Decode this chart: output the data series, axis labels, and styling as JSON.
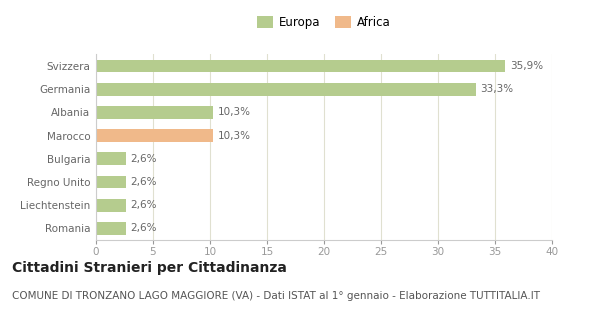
{
  "categories": [
    "Svizzera",
    "Germania",
    "Albania",
    "Marocco",
    "Bulgaria",
    "Regno Unito",
    "Liechtenstein",
    "Romania"
  ],
  "values": [
    35.9,
    33.3,
    10.3,
    10.3,
    2.6,
    2.6,
    2.6,
    2.6
  ],
  "labels": [
    "35,9%",
    "33,3%",
    "10,3%",
    "10,3%",
    "2,6%",
    "2,6%",
    "2,6%",
    "2,6%"
  ],
  "colors": [
    "#b5cc8e",
    "#b5cc8e",
    "#b5cc8e",
    "#f0b98a",
    "#b5cc8e",
    "#b5cc8e",
    "#b5cc8e",
    "#b5cc8e"
  ],
  "legend_items": [
    {
      "label": "Europa",
      "color": "#b5cc8e"
    },
    {
      "label": "Africa",
      "color": "#f0b98a"
    }
  ],
  "xlim": [
    0,
    40
  ],
  "xticks": [
    0,
    5,
    10,
    15,
    20,
    25,
    30,
    35,
    40
  ],
  "title": "Cittadini Stranieri per Cittadinanza",
  "subtitle": "COMUNE DI TRONZANO LAGO MAGGIORE (VA) - Dati ISTAT al 1° gennaio - Elaborazione TUTTITALIA.IT",
  "bg_color": "#ffffff",
  "grid_color": "#e0e0d0",
  "bar_height": 0.55,
  "title_fontsize": 10,
  "subtitle_fontsize": 7.5,
  "label_fontsize": 7.5,
  "tick_fontsize": 7.5,
  "legend_fontsize": 8.5
}
